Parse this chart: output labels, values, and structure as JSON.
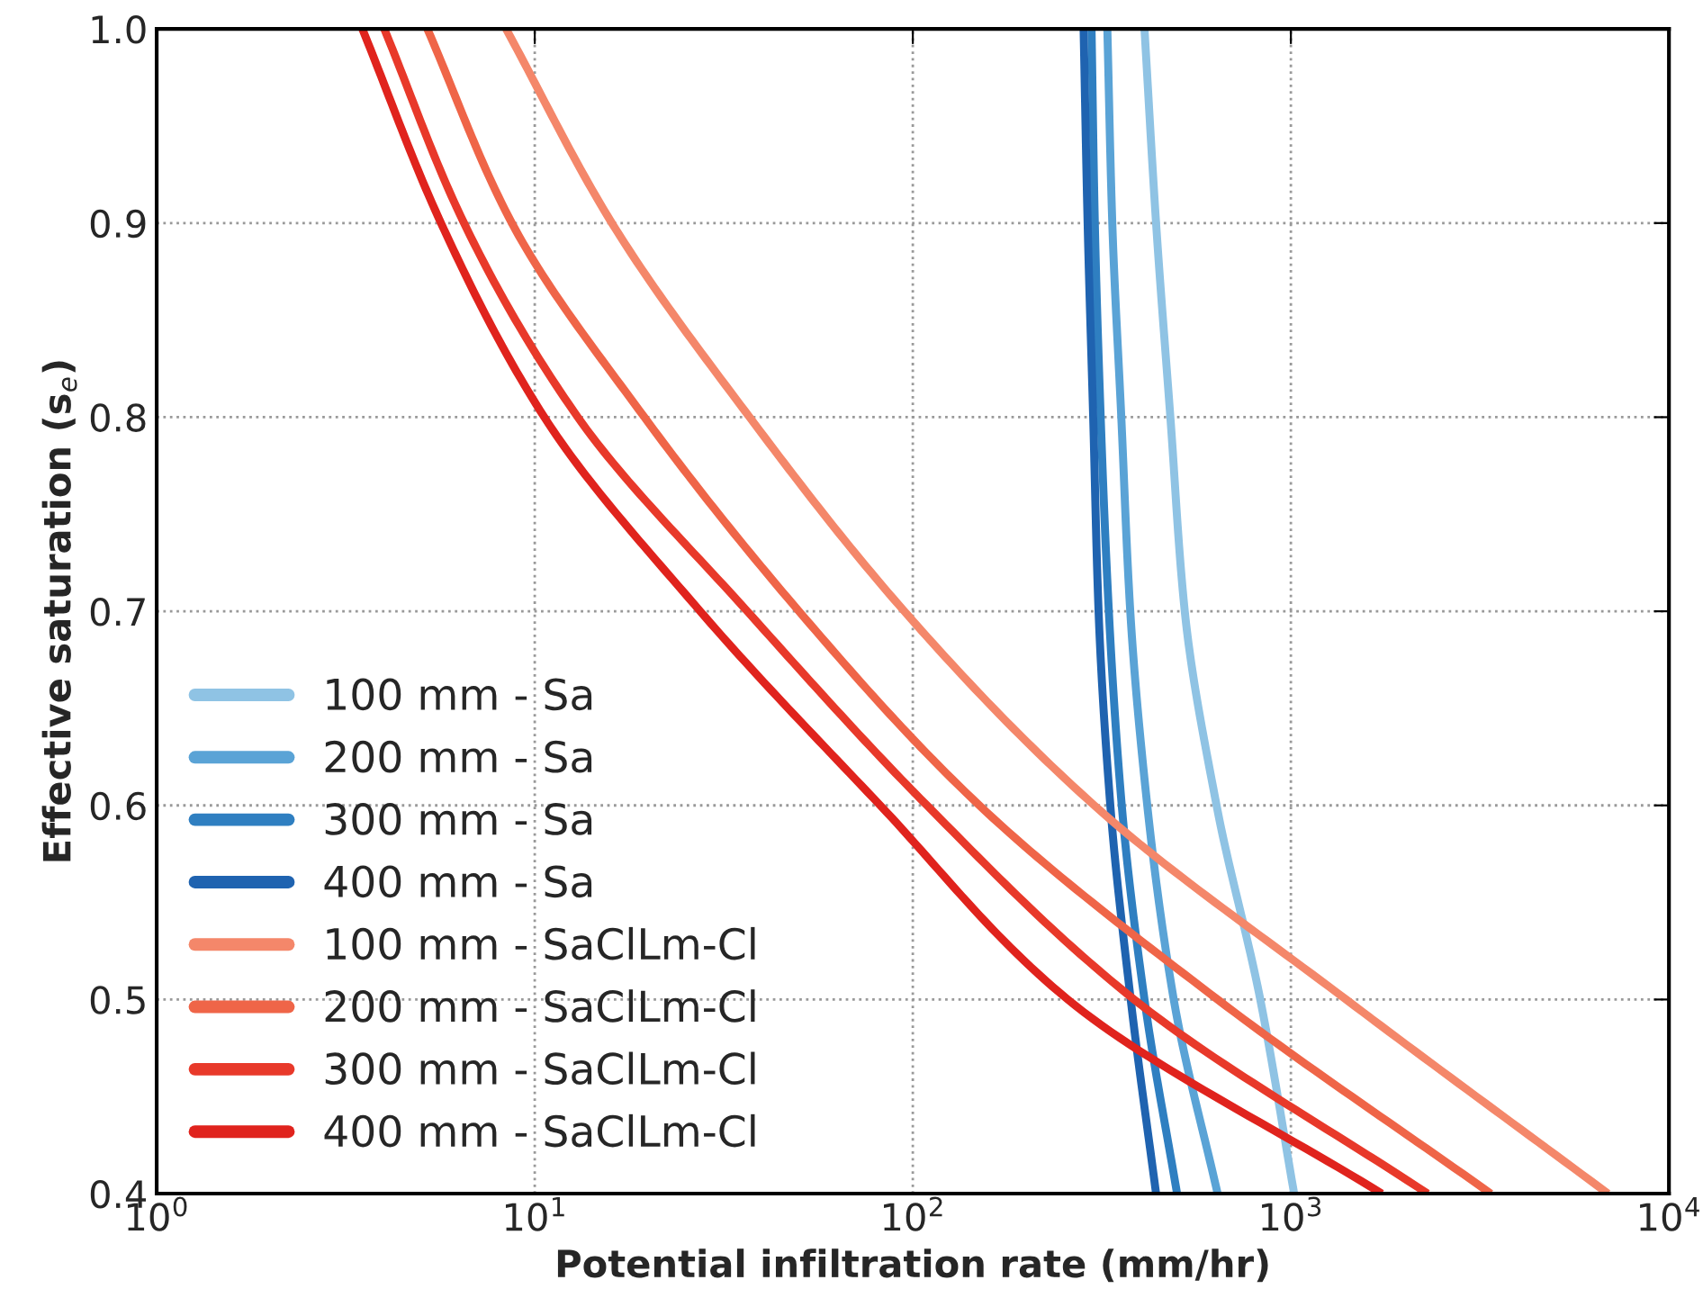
{
  "chart_data": {
    "type": "line",
    "xlabel": "Potential infiltration rate (mm/hr)",
    "ylabel": "Effective saturation (s$_{e}$)",
    "log": "x",
    "xlim": [
      1,
      10000
    ],
    "xticks": [
      {
        "value": 1,
        "label": "10$^{0}$"
      },
      {
        "value": 10,
        "label": "10$^{1}$"
      },
      {
        "value": 100,
        "label": "10$^{2}$"
      },
      {
        "value": 1000,
        "label": "10$^{3}$"
      },
      {
        "value": 10000,
        "label": "10$^{4}$"
      }
    ],
    "ylim": [
      0.4,
      1.0
    ],
    "yticks": [
      0.4,
      0.5,
      0.6,
      0.7,
      0.8,
      0.9,
      {
        "value": 1.0,
        "label": "1.0"
      }
    ],
    "grid": true,
    "legend": "bottom left",
    "marker": "none",
    "line_style": "solid",
    "series": [
      {
        "name": "100 mm - Sa",
        "color": "#8fc3e4",
        "x": [
          410,
          440,
          480,
          524,
          636,
          830,
          1020
        ],
        "values": [
          1.0,
          0.9,
          0.8,
          0.7,
          0.6,
          0.5,
          0.4
        ]
      },
      {
        "name": "200 mm - Sa",
        "color": "#5aa3d6",
        "x": [
          327,
          337,
          356,
          376,
          417,
          490,
          640
        ],
        "values": [
          1.0,
          0.9,
          0.8,
          0.7,
          0.6,
          0.5,
          0.4
        ]
      },
      {
        "name": "300 mm - Sa",
        "color": "#2f7fc1",
        "x": [
          297,
          303,
          314,
          330,
          357,
          410,
          500
        ],
        "values": [
          1.0,
          0.9,
          0.8,
          0.7,
          0.6,
          0.5,
          0.4
        ]
      },
      {
        "name": "400 mm - Sa",
        "color": "#1f63b0",
        "x": [
          283,
          290,
          300,
          310,
          333,
          377,
          440
        ],
        "values": [
          1.0,
          0.9,
          0.8,
          0.7,
          0.6,
          0.5,
          0.4
        ]
      },
      {
        "name": "100 mm - SaClLm-Cl",
        "color": "#f4876a",
        "x": [
          8.4,
          16,
          37,
          95,
          302,
          1400,
          6900
        ],
        "values": [
          1.0,
          0.9,
          0.8,
          0.7,
          0.6,
          0.5,
          0.4
        ]
      },
      {
        "name": "200 mm - SaClLm-Cl",
        "color": "#ef6548",
        "x": [
          5.2,
          8.7,
          19.5,
          50,
          150,
          640,
          3380
        ],
        "values": [
          1.0,
          0.9,
          0.8,
          0.7,
          0.6,
          0.5,
          0.4
        ]
      },
      {
        "name": "300 mm - SaClLm-Cl",
        "color": "#e8392a",
        "x": [
          4.0,
          6.5,
          13,
          36.5,
          109,
          385,
          2300
        ],
        "values": [
          1.0,
          0.9,
          0.8,
          0.7,
          0.6,
          0.5,
          0.4
        ]
      },
      {
        "name": "400 mm - SaClLm-Cl",
        "color": "#e0231d",
        "x": [
          3.5,
          5.65,
          10.6,
          27.4,
          82,
          257,
          1740
        ],
        "values": [
          1.0,
          0.9,
          0.8,
          0.7,
          0.6,
          0.5,
          0.4
        ]
      }
    ]
  }
}
